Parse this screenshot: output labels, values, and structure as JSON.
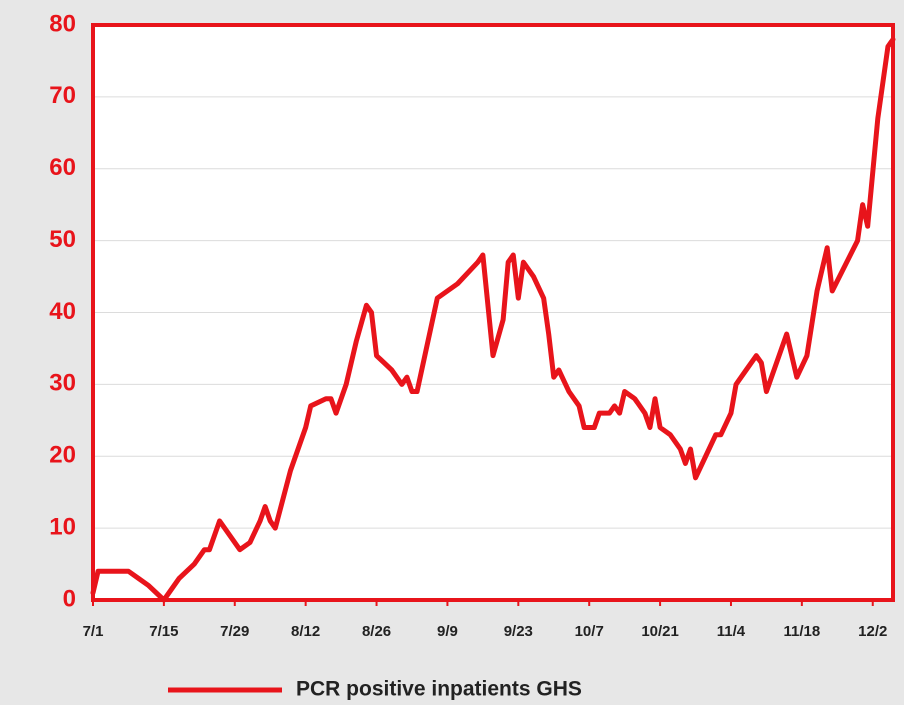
{
  "chart_data": {
    "type": "line",
    "x": [
      "7/1",
      "7/2",
      "7/6",
      "7/8",
      "7/10",
      "7/12",
      "7/15",
      "7/18",
      "7/21",
      "7/23",
      "7/24",
      "7/26",
      "7/28",
      "7/30",
      "8/1",
      "8/3",
      "8/4",
      "8/5",
      "8/6",
      "8/9",
      "8/12",
      "8/13",
      "8/16",
      "8/17",
      "8/18",
      "8/20",
      "8/22",
      "8/24",
      "8/25",
      "8/26",
      "8/29",
      "8/31",
      "9/1",
      "9/2",
      "9/3",
      "9/7",
      "9/11",
      "9/15",
      "9/16",
      "9/18",
      "9/20",
      "9/21",
      "9/22",
      "9/23",
      "9/24",
      "9/26",
      "9/28",
      "9/29",
      "9/30",
      "10/1",
      "10/3",
      "10/5",
      "10/6",
      "10/8",
      "10/9",
      "10/11",
      "10/12",
      "10/13",
      "10/14",
      "10/16",
      "10/18",
      "10/19",
      "10/20",
      "10/21",
      "10/23",
      "10/25",
      "10/26",
      "10/27",
      "10/28",
      "10/30",
      "11/1",
      "11/2",
      "11/4",
      "11/5",
      "11/7",
      "11/9",
      "11/10",
      "11/11",
      "11/13",
      "11/15",
      "11/17",
      "11/19",
      "11/21",
      "11/23",
      "11/24",
      "11/29",
      "11/30",
      "12/1",
      "12/3",
      "12/5",
      "12/6"
    ],
    "series": [
      {
        "name": "PCR positive  inpatients GHS",
        "color": "#e8141b",
        "values": [
          1,
          4,
          4,
          4,
          3,
          2,
          0,
          3,
          5,
          7,
          7,
          11,
          9,
          7,
          8,
          11,
          13,
          11,
          10,
          18,
          24,
          27,
          28,
          28,
          26,
          30,
          36,
          41,
          40,
          34,
          32,
          30,
          31,
          29,
          29,
          42,
          44,
          47,
          48,
          34,
          39,
          47,
          48,
          42,
          47,
          45,
          42,
          37,
          31,
          32,
          29,
          27,
          24,
          24,
          26,
          26,
          27,
          26,
          29,
          28,
          26,
          24,
          28,
          24,
          23,
          21,
          19,
          21,
          17,
          20,
          23,
          23,
          26,
          30,
          32,
          34,
          33,
          29,
          33,
          37,
          31,
          34,
          43,
          49,
          43,
          50,
          55,
          52,
          67,
          77,
          78
        ]
      }
    ],
    "xlim": [
      "7/1",
      "12/6"
    ],
    "xticks": [
      "7/1",
      "7/15",
      "7/29",
      "8/12",
      "8/26",
      "9/9",
      "9/23",
      "10/7",
      "10/21",
      "11/4",
      "11/18",
      "12/2"
    ],
    "ylim": [
      0,
      80
    ],
    "yticks": [
      0,
      10,
      20,
      30,
      40,
      50,
      60,
      70,
      80
    ],
    "grid": true
  }
}
